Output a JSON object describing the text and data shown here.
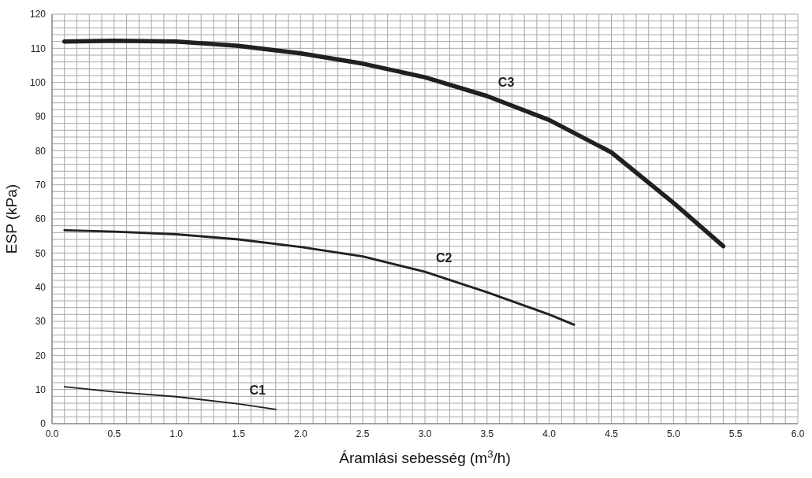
{
  "chart_data": {
    "type": "line",
    "xlabel": "Áramlási sebesség (m$^{3}$/h)",
    "ylabel": "ESP (kPa)",
    "xlim": [
      0,
      6
    ],
    "ylim": [
      0,
      120
    ],
    "grid": true,
    "legend": false,
    "marker": "none",
    "line_style": "solid",
    "xticks": [
      {
        "value": 0,
        "label": "0.0"
      },
      {
        "value": 0.1,
        "label": null
      },
      {
        "value": 0.2,
        "label": null
      },
      {
        "value": 0.3,
        "label": null
      },
      {
        "value": 0.4,
        "label": null
      },
      {
        "value": 0.5,
        "label": "0.5"
      },
      {
        "value": 0.6,
        "label": null
      },
      {
        "value": 0.7,
        "label": null
      },
      {
        "value": 0.8,
        "label": null
      },
      {
        "value": 0.9,
        "label": null
      },
      {
        "value": 1,
        "label": "1.0"
      },
      {
        "value": 1.1,
        "label": null
      },
      {
        "value": 1.2,
        "label": null
      },
      {
        "value": 1.3,
        "label": null
      },
      {
        "value": 1.4,
        "label": null
      },
      {
        "value": 1.5,
        "label": "1.5"
      },
      {
        "value": 1.6,
        "label": null
      },
      {
        "value": 1.7,
        "label": null
      },
      {
        "value": 1.8,
        "label": null
      },
      {
        "value": 1.9,
        "label": null
      },
      {
        "value": 2,
        "label": "2.0"
      },
      {
        "value": 2.1,
        "label": null
      },
      {
        "value": 2.2,
        "label": null
      },
      {
        "value": 2.3,
        "label": null
      },
      {
        "value": 2.4,
        "label": null
      },
      {
        "value": 2.5,
        "label": "2.5"
      },
      {
        "value": 2.6,
        "label": null
      },
      {
        "value": 2.7,
        "label": null
      },
      {
        "value": 2.8,
        "label": null
      },
      {
        "value": 2.9,
        "label": null
      },
      {
        "value": 3,
        "label": "3.0"
      },
      {
        "value": 3.1,
        "label": null
      },
      {
        "value": 3.2,
        "label": null
      },
      {
        "value": 3.3,
        "label": null
      },
      {
        "value": 3.4,
        "label": null
      },
      {
        "value": 3.5,
        "label": "3.5"
      },
      {
        "value": 3.6,
        "label": null
      },
      {
        "value": 3.7,
        "label": null
      },
      {
        "value": 3.8,
        "label": null
      },
      {
        "value": 3.9,
        "label": null
      },
      {
        "value": 4,
        "label": "4.0"
      },
      {
        "value": 4.1,
        "label": null
      },
      {
        "value": 4.2,
        "label": null
      },
      {
        "value": 4.3,
        "label": null
      },
      {
        "value": 4.4,
        "label": null
      },
      {
        "value": 4.5,
        "label": "4.5"
      },
      {
        "value": 4.6,
        "label": null
      },
      {
        "value": 4.7,
        "label": null
      },
      {
        "value": 4.8,
        "label": null
      },
      {
        "value": 4.9,
        "label": null
      },
      {
        "value": 5,
        "label": "5.0"
      },
      {
        "value": 5.1,
        "label": null
      },
      {
        "value": 5.2,
        "label": null
      },
      {
        "value": 5.3,
        "label": null
      },
      {
        "value": 5.4,
        "label": null
      },
      {
        "value": 5.5,
        "label": "5.5"
      },
      {
        "value": 5.6,
        "label": null
      },
      {
        "value": 5.7,
        "label": null
      },
      {
        "value": 5.8,
        "label": null
      },
      {
        "value": 5.9,
        "label": null
      },
      {
        "value": 6,
        "label": "6.0"
      }
    ],
    "yticks": [
      0,
      {
        "value": 2,
        "label": null
      },
      {
        "value": 4,
        "label": null
      },
      {
        "value": 6,
        "label": null
      },
      {
        "value": 8,
        "label": null
      },
      10,
      {
        "value": 12,
        "label": null
      },
      {
        "value": 14,
        "label": null
      },
      {
        "value": 16,
        "label": null
      },
      {
        "value": 18,
        "label": null
      },
      20,
      {
        "value": 22,
        "label": null
      },
      {
        "value": 24,
        "label": null
      },
      {
        "value": 26,
        "label": null
      },
      {
        "value": 28,
        "label": null
      },
      30,
      {
        "value": 32,
        "label": null
      },
      {
        "value": 34,
        "label": null
      },
      {
        "value": 36,
        "label": null
      },
      {
        "value": 38,
        "label": null
      },
      40,
      {
        "value": 42,
        "label": null
      },
      {
        "value": 44,
        "label": null
      },
      {
        "value": 46,
        "label": null
      },
      {
        "value": 48,
        "label": null
      },
      50,
      {
        "value": 52,
        "label": null
      },
      {
        "value": 54,
        "label": null
      },
      {
        "value": 56,
        "label": null
      },
      {
        "value": 58,
        "label": null
      },
      60,
      {
        "value": 62,
        "label": null
      },
      {
        "value": 64,
        "label": null
      },
      {
        "value": 66,
        "label": null
      },
      {
        "value": 68,
        "label": null
      },
      70,
      {
        "value": 72,
        "label": null
      },
      {
        "value": 74,
        "label": null
      },
      {
        "value": 76,
        "label": null
      },
      {
        "value": 78,
        "label": null
      },
      80,
      {
        "value": 82,
        "label": null
      },
      {
        "value": 84,
        "label": null
      },
      {
        "value": 86,
        "label": null
      },
      {
        "value": 88,
        "label": null
      },
      90,
      {
        "value": 92,
        "label": null
      },
      {
        "value": 94,
        "label": null
      },
      {
        "value": 96,
        "label": null
      },
      {
        "value": 98,
        "label": null
      },
      100,
      {
        "value": 102,
        "label": null
      },
      {
        "value": 104,
        "label": null
      },
      {
        "value": 106,
        "label": null
      },
      {
        "value": 108,
        "label": null
      },
      110,
      {
        "value": 112,
        "label": null
      },
      {
        "value": 114,
        "label": null
      },
      {
        "value": 116,
        "label": null
      },
      {
        "value": 118,
        "label": null
      },
      120
    ],
    "series": [
      {
        "name": "C1",
        "color": "#231f20",
        "x": [
          0.1,
          0.5,
          1.0,
          1.5,
          1.8
        ],
        "values": [
          10.8,
          9.3,
          7.9,
          5.8,
          4.2
        ]
      },
      {
        "name": "C2",
        "color": "#231f20",
        "x": [
          0.1,
          0.5,
          1.0,
          1.5,
          2.0,
          2.5,
          3.0,
          3.5,
          4.0,
          4.2
        ],
        "values": [
          56.7,
          56.3,
          55.5,
          54,
          51.8,
          49,
          44.5,
          38.5,
          32,
          29
        ]
      },
      {
        "name": "C3",
        "color": "#231f20",
        "x": [
          0.1,
          0.5,
          1.0,
          1.5,
          2.0,
          2.5,
          3.0,
          3.5,
          4.0,
          4.5,
          5.0,
          5.4
        ],
        "values": [
          112,
          112.2,
          112,
          110.7,
          108.5,
          105.5,
          101.5,
          96,
          89,
          79.5,
          64.7,
          52
        ]
      }
    ]
  }
}
